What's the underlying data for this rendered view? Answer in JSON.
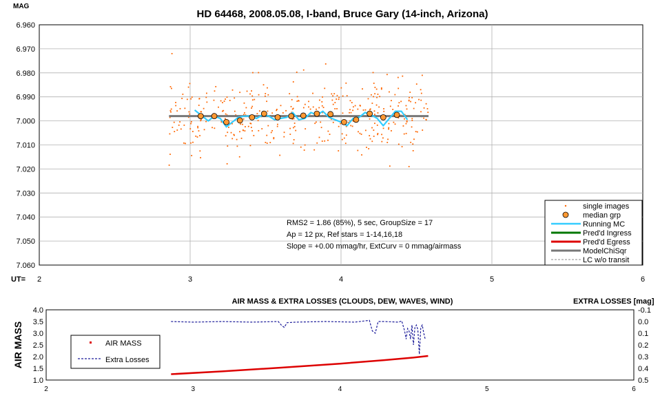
{
  "chart_data": [
    {
      "type": "scatter",
      "title": "HD 64468, 2008.05.08, I-band, Bruce Gary (14-inch, Arizona)",
      "ylabel": "MAG",
      "xlabel": "UT=",
      "xlim": [
        2,
        6
      ],
      "ylim": [
        6.96,
        7.06
      ],
      "y_inverted": true,
      "x_ticks": [
        "2",
        "3",
        "4",
        "5",
        "6"
      ],
      "y_ticks": [
        "6.960",
        "6.970",
        "6.980",
        "6.990",
        "7.000",
        "7.010",
        "7.020",
        "7.030",
        "7.040",
        "7.050",
        "7.060"
      ],
      "grid": true,
      "legend_position": "bottom-right",
      "legend": [
        "single images",
        "median grp",
        "Running MC",
        "Pred'd Ingress",
        "Pred'd Egress",
        "ModelChiSqr",
        "LC w/o transit"
      ],
      "annotations": [
        "RMS2 = 1.86 (85%), 5 sec, GroupSize = 17",
        "Ap = 12 px, Ref stars = 1-14,16,18",
        "Slope = +0.00 mmag/hr, ExtCurv = 0 mmag/airmass"
      ],
      "series": [
        {
          "name": "single images",
          "x_range": [
            2.86,
            4.58
          ],
          "count": 400,
          "center": 6.998,
          "spread": 0.0075,
          "color": "#ff6600"
        },
        {
          "name": "median grp",
          "x": [
            3.07,
            3.16,
            3.24,
            3.33,
            3.41,
            3.49,
            3.58,
            3.67,
            3.75,
            3.84,
            3.93,
            4.02,
            4.1,
            4.19,
            4.28,
            4.37
          ],
          "y": [
            6.998,
            6.998,
            7.0005,
            6.9998,
            6.9985,
            6.997,
            6.9985,
            6.998,
            6.9978,
            6.997,
            6.9972,
            7.0005,
            6.9995,
            6.997,
            6.9985,
            6.9975
          ],
          "color": "#ff9933"
        },
        {
          "name": "Running MC",
          "x": [
            3.03,
            3.08,
            3.12,
            3.16,
            3.2,
            3.24,
            3.28,
            3.32,
            3.36,
            3.4,
            3.44,
            3.48,
            3.52,
            3.56,
            3.6,
            3.64,
            3.68,
            3.72,
            3.76,
            3.8,
            3.84,
            3.88,
            3.92,
            3.96,
            4.0,
            4.04,
            4.08,
            4.12,
            4.16,
            4.2,
            4.24,
            4.28,
            4.32,
            4.36,
            4.4,
            4.44
          ],
          "y": [
            6.9955,
            6.998,
            7.0,
            6.998,
            6.999,
            7.0025,
            7.0005,
            6.9985,
            6.998,
            6.998,
            6.999,
            6.9975,
            6.998,
            6.9995,
            6.999,
            6.9985,
            6.9965,
            6.9995,
            6.999,
            6.9965,
            6.9975,
            6.996,
            6.9985,
            6.9995,
            7.0005,
            7.002,
            6.999,
            6.9985,
            6.9965,
            6.9975,
            6.999,
            7.002,
            6.999,
            6.996,
            6.996,
            6.9995
          ],
          "color": "#33ccff"
        },
        {
          "name": "ModelChiSqr",
          "x": [
            2.86,
            4.58
          ],
          "y": [
            6.998,
            6.998
          ],
          "color": "#777777"
        }
      ]
    },
    {
      "type": "line",
      "title": "AIR MASS & EXTRA LOSSES (CLOUDS, DEW, WAVES, WIND)",
      "ylabel": "AIR MASS",
      "y2label": "EXTRA LOSSES [mag]",
      "xlim": [
        2,
        6
      ],
      "ylim": [
        1.0,
        4.0
      ],
      "y2lim": [
        -0.1,
        0.5
      ],
      "y2_inverted": true,
      "x_ticks": [
        "2",
        "3",
        "4",
        "5",
        "6"
      ],
      "y_ticks": [
        "4.0",
        "3.5",
        "3.0",
        "2.5",
        "2.0",
        "1.5",
        "1.0"
      ],
      "y2_ticks": [
        "-0.1",
        "0.0",
        "0.1",
        "0.2",
        "0.3",
        "0.4",
        "0.5"
      ],
      "legend": [
        "AIR MASS",
        "Extra Losses"
      ],
      "legend_position": "middle-left",
      "series": [
        {
          "name": "AIR MASS",
          "axis": "left",
          "x": [
            2.85,
            3.2,
            3.6,
            4.0,
            4.3,
            4.5,
            4.6
          ],
          "y": [
            1.25,
            1.37,
            1.53,
            1.7,
            1.85,
            1.96,
            2.03
          ],
          "color": "#dd0000"
        },
        {
          "name": "Extra Losses",
          "axis": "right",
          "x": [
            2.85,
            3.0,
            3.2,
            3.4,
            3.58,
            3.6,
            3.62,
            3.64,
            3.7,
            3.9,
            4.1,
            4.2,
            4.22,
            4.24,
            4.26,
            4.3,
            4.4,
            4.42,
            4.44,
            4.45,
            4.46,
            4.47,
            4.48,
            4.49,
            4.5,
            4.51,
            4.52,
            4.53,
            4.54,
            4.55,
            4.56,
            4.57,
            4.58
          ],
          "y": [
            0.0,
            0.005,
            0.0,
            0.005,
            0.0,
            0.03,
            0.05,
            0.01,
            0.005,
            0.0,
            0.005,
            -0.01,
            0.08,
            0.1,
            0.0,
            0.0,
            0.005,
            -0.005,
            0.08,
            0.15,
            0.06,
            0.08,
            0.15,
            0.03,
            0.2,
            0.05,
            0.03,
            0.07,
            0.28,
            0.05,
            0.03,
            0.1,
            0.15
          ],
          "color": "#1a1a99"
        }
      ]
    }
  ]
}
